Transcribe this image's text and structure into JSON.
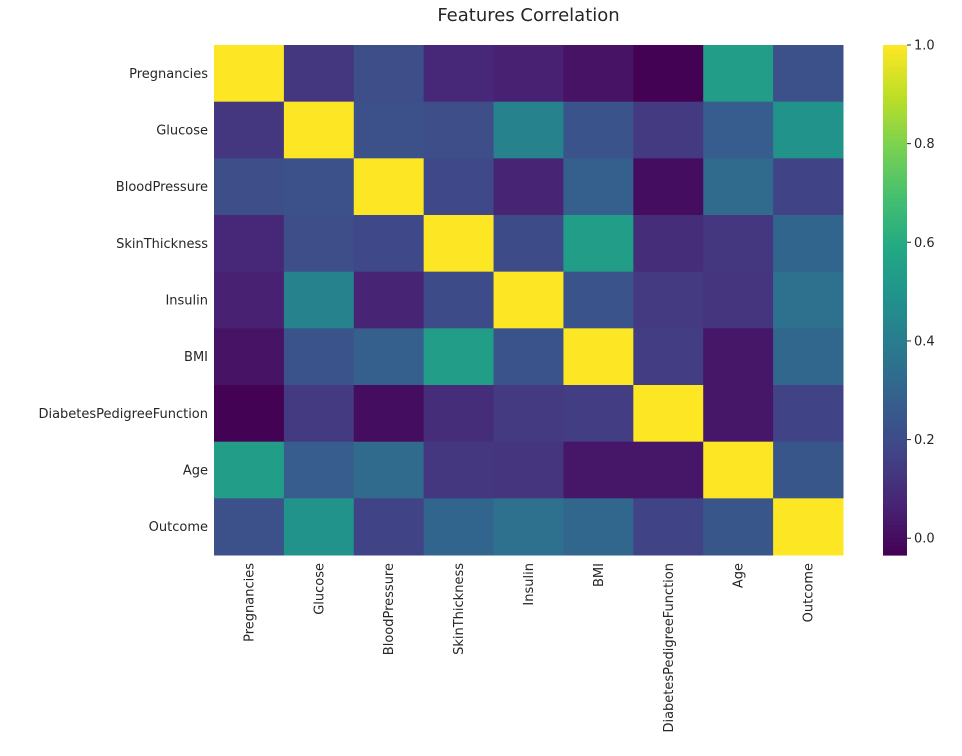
{
  "chart_data": {
    "type": "heatmap",
    "title": "Features Correlation",
    "colormap": "viridis",
    "xlabel": "",
    "ylabel": "",
    "categories": [
      "Pregnancies",
      "Glucose",
      "BloodPressure",
      "SkinThickness",
      "Insulin",
      "BMI",
      "DiabetesPedigreeFunction",
      "Age",
      "Outcome"
    ],
    "values": [
      [
        1.0,
        0.13,
        0.21,
        0.08,
        0.06,
        0.02,
        -0.03,
        0.54,
        0.22
      ],
      [
        0.13,
        1.0,
        0.22,
        0.21,
        0.42,
        0.23,
        0.14,
        0.27,
        0.49
      ],
      [
        0.21,
        0.22,
        1.0,
        0.19,
        0.07,
        0.28,
        0.0,
        0.32,
        0.17
      ],
      [
        0.08,
        0.21,
        0.19,
        1.0,
        0.2,
        0.54,
        0.1,
        0.13,
        0.3
      ],
      [
        0.06,
        0.42,
        0.07,
        0.2,
        1.0,
        0.23,
        0.14,
        0.12,
        0.35
      ],
      [
        0.02,
        0.23,
        0.28,
        0.54,
        0.23,
        1.0,
        0.15,
        0.03,
        0.31
      ],
      [
        -0.03,
        0.14,
        0.0,
        0.1,
        0.14,
        0.15,
        1.0,
        0.03,
        0.17
      ],
      [
        0.54,
        0.27,
        0.32,
        0.13,
        0.12,
        0.03,
        0.03,
        1.0,
        0.24
      ],
      [
        0.22,
        0.49,
        0.17,
        0.3,
        0.35,
        0.31,
        0.17,
        0.24,
        1.0
      ]
    ],
    "colorbar": {
      "range": [
        -0.034,
        1.0
      ],
      "ticks": [
        "0.0",
        "0.2",
        "0.4",
        "0.6",
        "0.8",
        "1.0"
      ]
    }
  }
}
